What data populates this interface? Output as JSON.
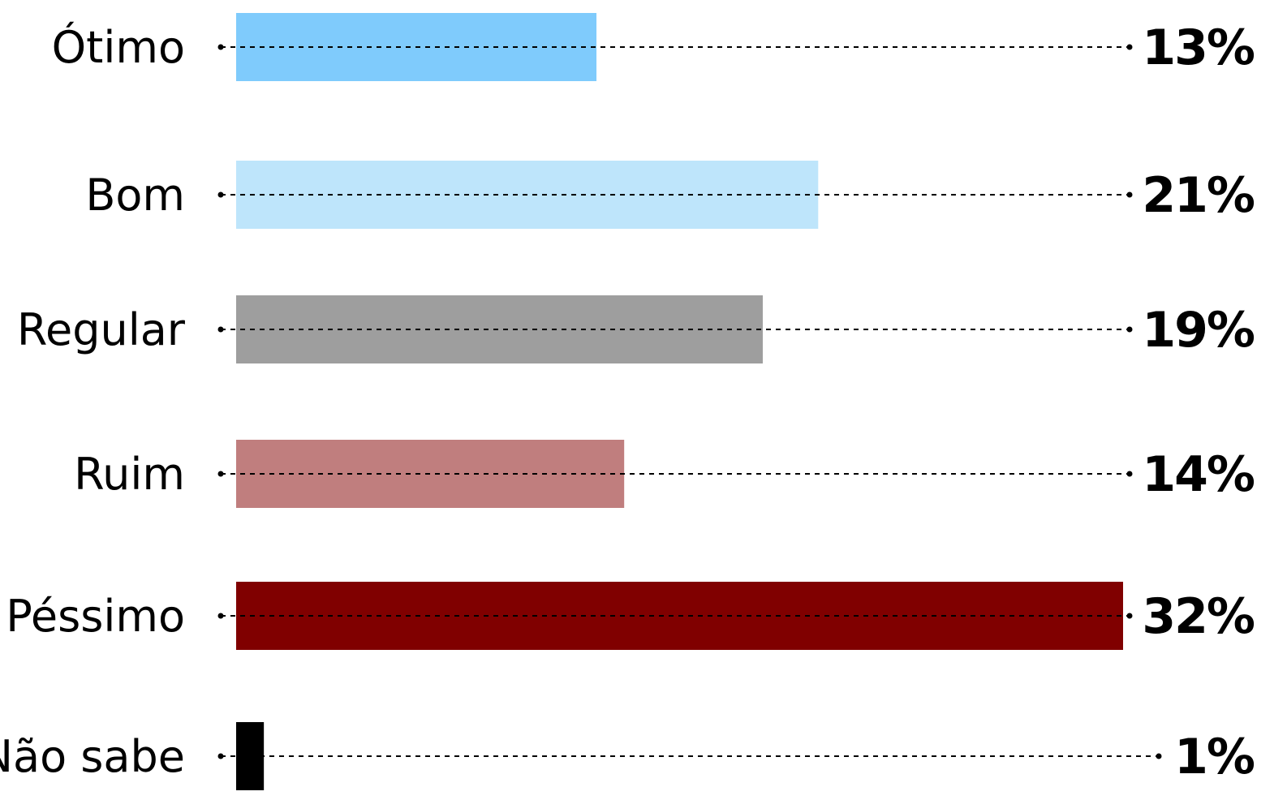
{
  "chart_data": {
    "type": "bar",
    "orientation": "horizontal",
    "categories": [
      "Ótimo",
      "Bom",
      "Regular",
      "Ruim",
      "Péssimo",
      "Não sabe"
    ],
    "values": [
      13,
      21,
      19,
      14,
      32,
      1
    ],
    "value_labels": [
      "13%",
      "21%",
      "19%",
      "14%",
      "32%",
      "1%"
    ],
    "colors": [
      "#7fcbfc",
      "#bee5fb",
      "#9e9e9e",
      "#c07e7e",
      "#800000",
      "#000000"
    ],
    "xlim": [
      0,
      32
    ],
    "title": "",
    "xlabel": "",
    "ylabel": "",
    "grid": false,
    "legend": "none",
    "leader_lines": "dotted"
  }
}
